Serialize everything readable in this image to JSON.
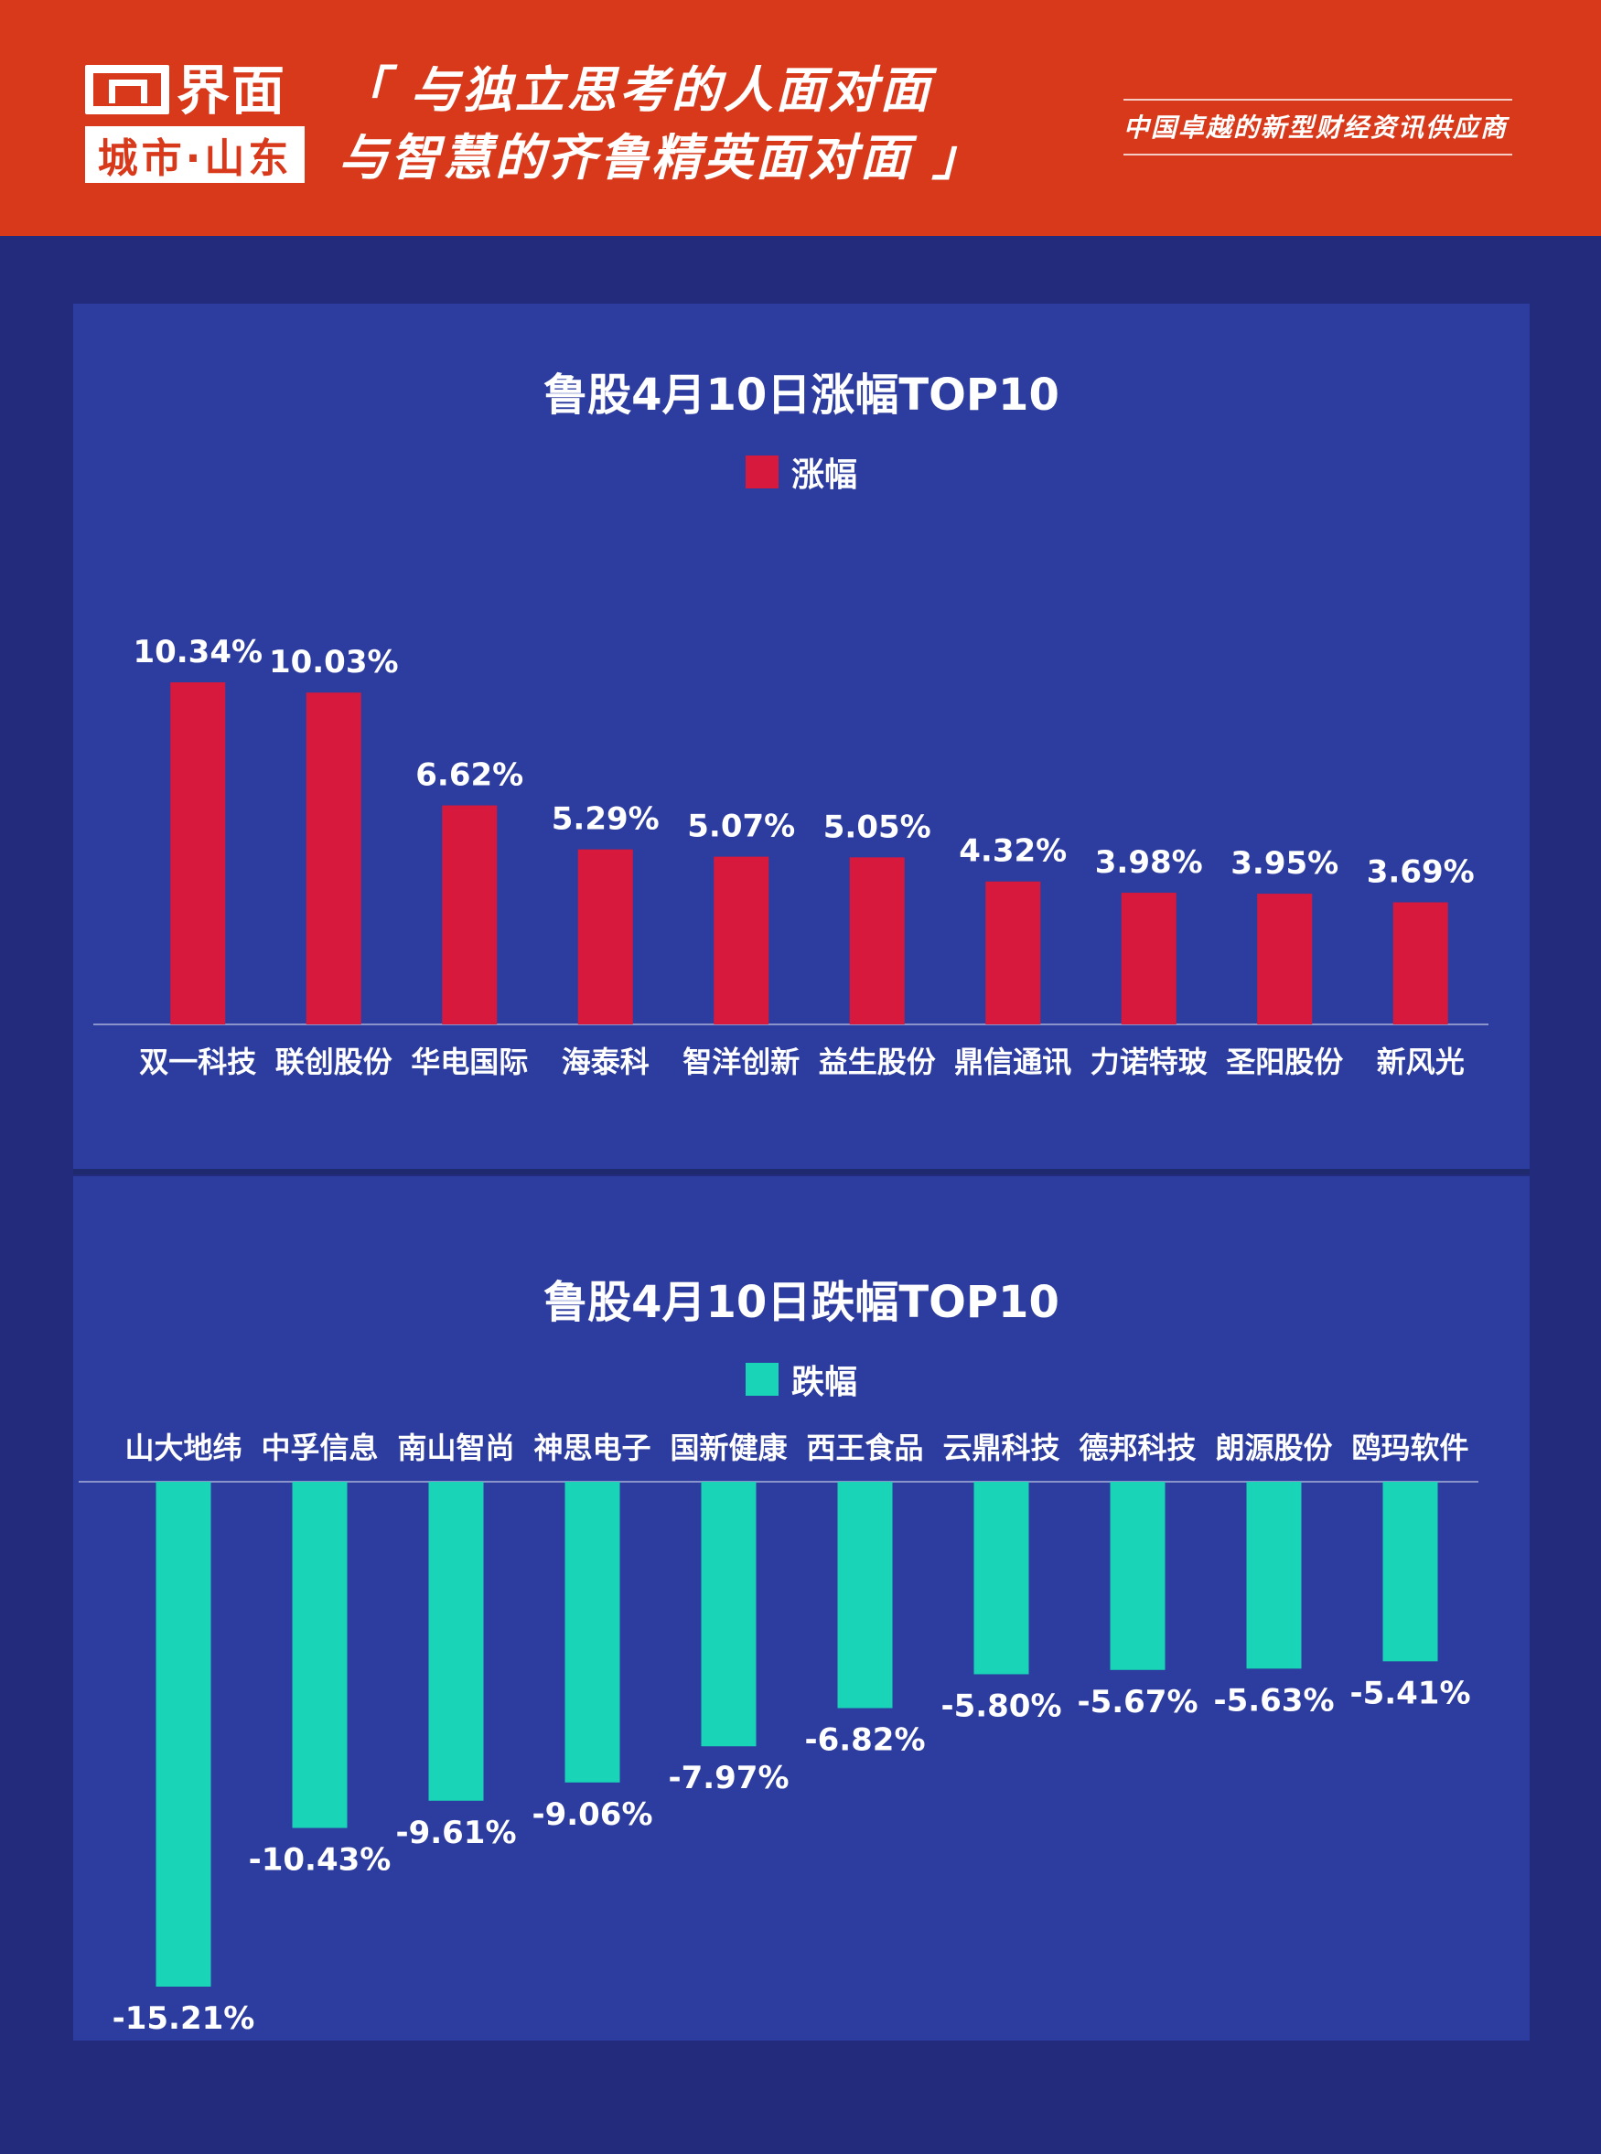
{
  "header": {
    "logo_text": "界面",
    "logo_sub": "城市·山东",
    "slogan_line1": "「 与独立思考的人面对面",
    "slogan_line2": "与智慧的齐鲁精英面对面 」",
    "tagline": "中国卓越的新型财经资讯供应商"
  },
  "colors": {
    "header_bg": "#d7391a",
    "page_bg": "#232b7d",
    "panel_bg": "#2d3c9f",
    "gain_bar": "#d7193d",
    "loss_bar": "#19d4b6"
  },
  "chart_data": [
    {
      "type": "bar",
      "title": "鲁股4月10日涨幅TOP10",
      "legend": "涨幅",
      "categories": [
        "双一科技",
        "联创股份",
        "华电国际",
        "海泰科",
        "智洋创新",
        "益生股份",
        "鼎信通讯",
        "力诺特玻",
        "圣阳股份",
        "新风光"
      ],
      "values": [
        10.34,
        10.03,
        6.62,
        5.29,
        5.07,
        5.05,
        4.32,
        3.98,
        3.95,
        3.69
      ],
      "labels": [
        "10.34%",
        "10.03%",
        "6.62%",
        "5.29%",
        "5.07%",
        "5.05%",
        "4.32%",
        "3.98%",
        "3.95%",
        "3.69%"
      ],
      "ylim": [
        0,
        10.34
      ],
      "grid": false
    },
    {
      "type": "bar",
      "title": "鲁股4月10日跌幅TOP10",
      "legend": "跌幅",
      "categories": [
        "山大地纬",
        "中孚信息",
        "南山智尚",
        "神思电子",
        "国新健康",
        "西王食品",
        "云鼎科技",
        "德邦科技",
        "朗源股份",
        "鸥玛软件"
      ],
      "values": [
        -15.21,
        -10.43,
        -9.61,
        -9.06,
        -7.97,
        -6.82,
        -5.8,
        -5.67,
        -5.63,
        -5.41
      ],
      "labels": [
        "-15.21%",
        "-10.43%",
        "-9.61%",
        "-9.06%",
        "-7.97%",
        "-6.82%",
        "-5.80%",
        "-5.67%",
        "-5.63%",
        "-5.41%"
      ],
      "ylim": [
        -15.21,
        0
      ],
      "grid": false
    }
  ]
}
